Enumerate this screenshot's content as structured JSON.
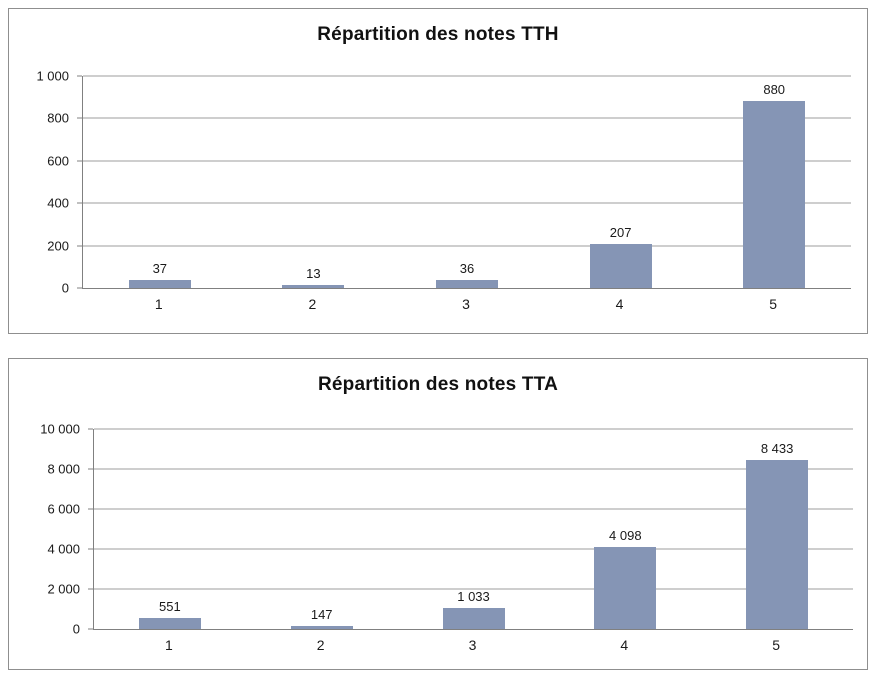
{
  "page": {
    "background_color": "#ffffff",
    "chart_border_color": "#8f8f8f",
    "gridline_color": "#9c9c9c",
    "axis_color": "#808080",
    "text_color": "#1a1a1a",
    "bar_color": "#8595B5"
  },
  "chart_data": [
    {
      "type": "bar",
      "title": "Répartition des notes TTH",
      "categories": [
        "1",
        "2",
        "3",
        "4",
        "5"
      ],
      "values": [
        37,
        13,
        36,
        207,
        880
      ],
      "value_labels": [
        "37",
        "13",
        "36",
        "207",
        "880"
      ],
      "xlabel": "",
      "ylabel": "",
      "ylim": [
        0,
        1000
      ],
      "yticks": [
        0,
        200,
        400,
        600,
        800,
        1000
      ],
      "ytick_labels": [
        "0",
        "200",
        "400",
        "600",
        "800",
        "1 000"
      ],
      "grid": true,
      "legend": false
    },
    {
      "type": "bar",
      "title": "Répartition des notes TTA",
      "categories": [
        "1",
        "2",
        "3",
        "4",
        "5"
      ],
      "values": [
        551,
        147,
        1033,
        4098,
        8433
      ],
      "value_labels": [
        "551",
        "147",
        "1 033",
        "4 098",
        "8 433"
      ],
      "xlabel": "",
      "ylabel": "",
      "ylim": [
        0,
        10000
      ],
      "yticks": [
        0,
        2000,
        4000,
        6000,
        8000,
        10000
      ],
      "ytick_labels": [
        "0",
        "2 000",
        "4 000",
        "6 000",
        "8 000",
        "10 000"
      ],
      "grid": true,
      "legend": false
    }
  ]
}
